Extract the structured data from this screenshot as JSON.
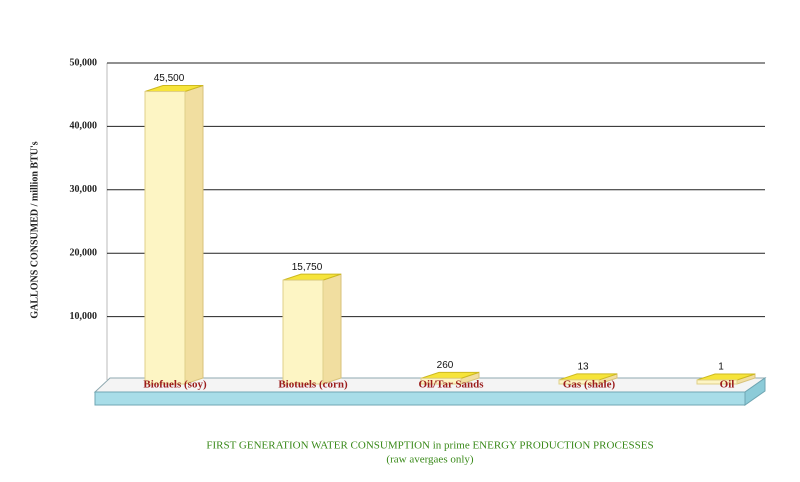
{
  "chart_data": {
    "type": "bar3d",
    "y_label": "GALLONS CONSUMED  / million BTU's",
    "title": "FIRST GENERATION  WATER CONSUMPTION in prime  ENERGY PRODUCTION PROCESSES",
    "subtitle": "(raw avergaes only)",
    "categories": [
      "Biofuels (soy)",
      "Biotuels (corn)",
      "Oil/Tar Sands",
      "Gas (shale)",
      "Oil"
    ],
    "values": [
      45500,
      15750,
      260,
      13,
      1
    ],
    "value_labels": [
      "45,500",
      "15,750",
      "260",
      "13",
      "1"
    ],
    "color": "#fdf5c4",
    "ylim": [
      0,
      50000
    ],
    "yticks": [
      {
        "value": 10000,
        "label": "10,000"
      },
      {
        "value": 20000,
        "label": "20,000"
      },
      {
        "value": 30000,
        "label": "30,000"
      },
      {
        "value": 40000,
        "label": "40,000"
      },
      {
        "value": 50000,
        "label": "50,000"
      }
    ],
    "grid": true
  }
}
